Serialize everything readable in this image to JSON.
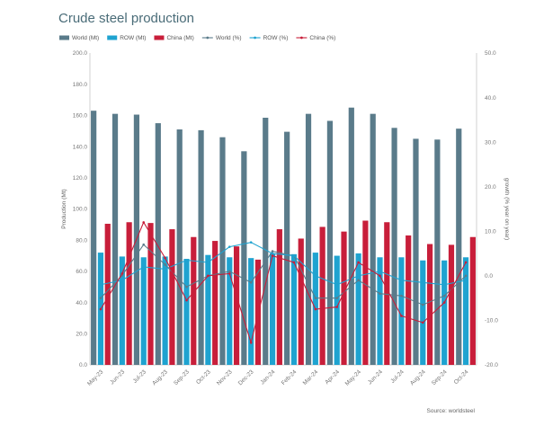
{
  "chart_data": {
    "type": "bar",
    "title": "Crude steel production",
    "ylabel": "Production (Mt)",
    "y2label": "growth (% year on year)",
    "ylim": [
      0,
      200
    ],
    "y2lim": [
      -20,
      50
    ],
    "yticks": [
      "0.0",
      "20.0",
      "40.0",
      "60.0",
      "80.0",
      "100.0",
      "120.0",
      "140.0",
      "160.0",
      "180.0",
      "200.0"
    ],
    "y2ticks": [
      "-20.0",
      "-10.0",
      "0.0",
      "10.0",
      "20.0",
      "30.0",
      "40.0",
      "50.0"
    ],
    "categories": [
      "May-23",
      "Jun-23",
      "Jul-23",
      "Aug-23",
      "Sep-23",
      "Oct-23",
      "Nov-23",
      "Dec-23",
      "Jan-24",
      "Feb-24",
      "Mar-24",
      "Apr-24",
      "May-24",
      "Jun-24",
      "Jul-24",
      "Aug-24",
      "Sep-24",
      "Oct-24"
    ],
    "legend_position": "top-left",
    "grid": false,
    "source": "Source: worldsteel",
    "bar_series": [
      {
        "name": "World (Mt)",
        "color": "#5a7b8a",
        "values": [
          163,
          161,
          160.5,
          155,
          151,
          150.5,
          146,
          137,
          158.5,
          149.5,
          161,
          156.5,
          165,
          161,
          152,
          145,
          144.5,
          151.5
        ]
      },
      {
        "name": "ROW (Mt)",
        "color": "#1fa3d0",
        "values": [
          72,
          69.5,
          69,
          69.5,
          68,
          70.5,
          69,
          68.5,
          71.5,
          71,
          72,
          70,
          71.5,
          69,
          69,
          67,
          67,
          69
        ]
      },
      {
        "name": "China (Mt)",
        "color": "#c81e3a",
        "values": [
          90.5,
          91.5,
          91,
          87,
          82,
          79.5,
          76,
          67.5,
          87,
          81,
          88.5,
          85.5,
          92.5,
          91.5,
          83,
          77.5,
          77,
          82
        ]
      }
    ],
    "line_series": [
      {
        "name": "World (%)",
        "color": "#5a7b8a",
        "values": [
          -5,
          0.1,
          7,
          2.5,
          -2.5,
          0,
          1,
          -1.5,
          5.5,
          4.5,
          -5,
          -5,
          -1,
          -4,
          -4.5,
          -6.5,
          -4.5,
          0
        ]
      },
      {
        "name": "ROW (%)",
        "color": "#1fa3d0",
        "values": [
          -2,
          -1,
          2,
          1.5,
          3.5,
          3,
          6.5,
          7.5,
          5,
          4.5,
          0,
          -2,
          0,
          1,
          -1,
          -1.5,
          -2,
          -1
        ]
      },
      {
        "name": "China (%)",
        "color": "#c81e3a",
        "values": [
          -7.5,
          0.5,
          12,
          4,
          -5.5,
          0,
          0.5,
          -15,
          4.5,
          3,
          -7.5,
          -7,
          3,
          0,
          -9,
          -10.5,
          -6,
          3
        ]
      }
    ]
  }
}
